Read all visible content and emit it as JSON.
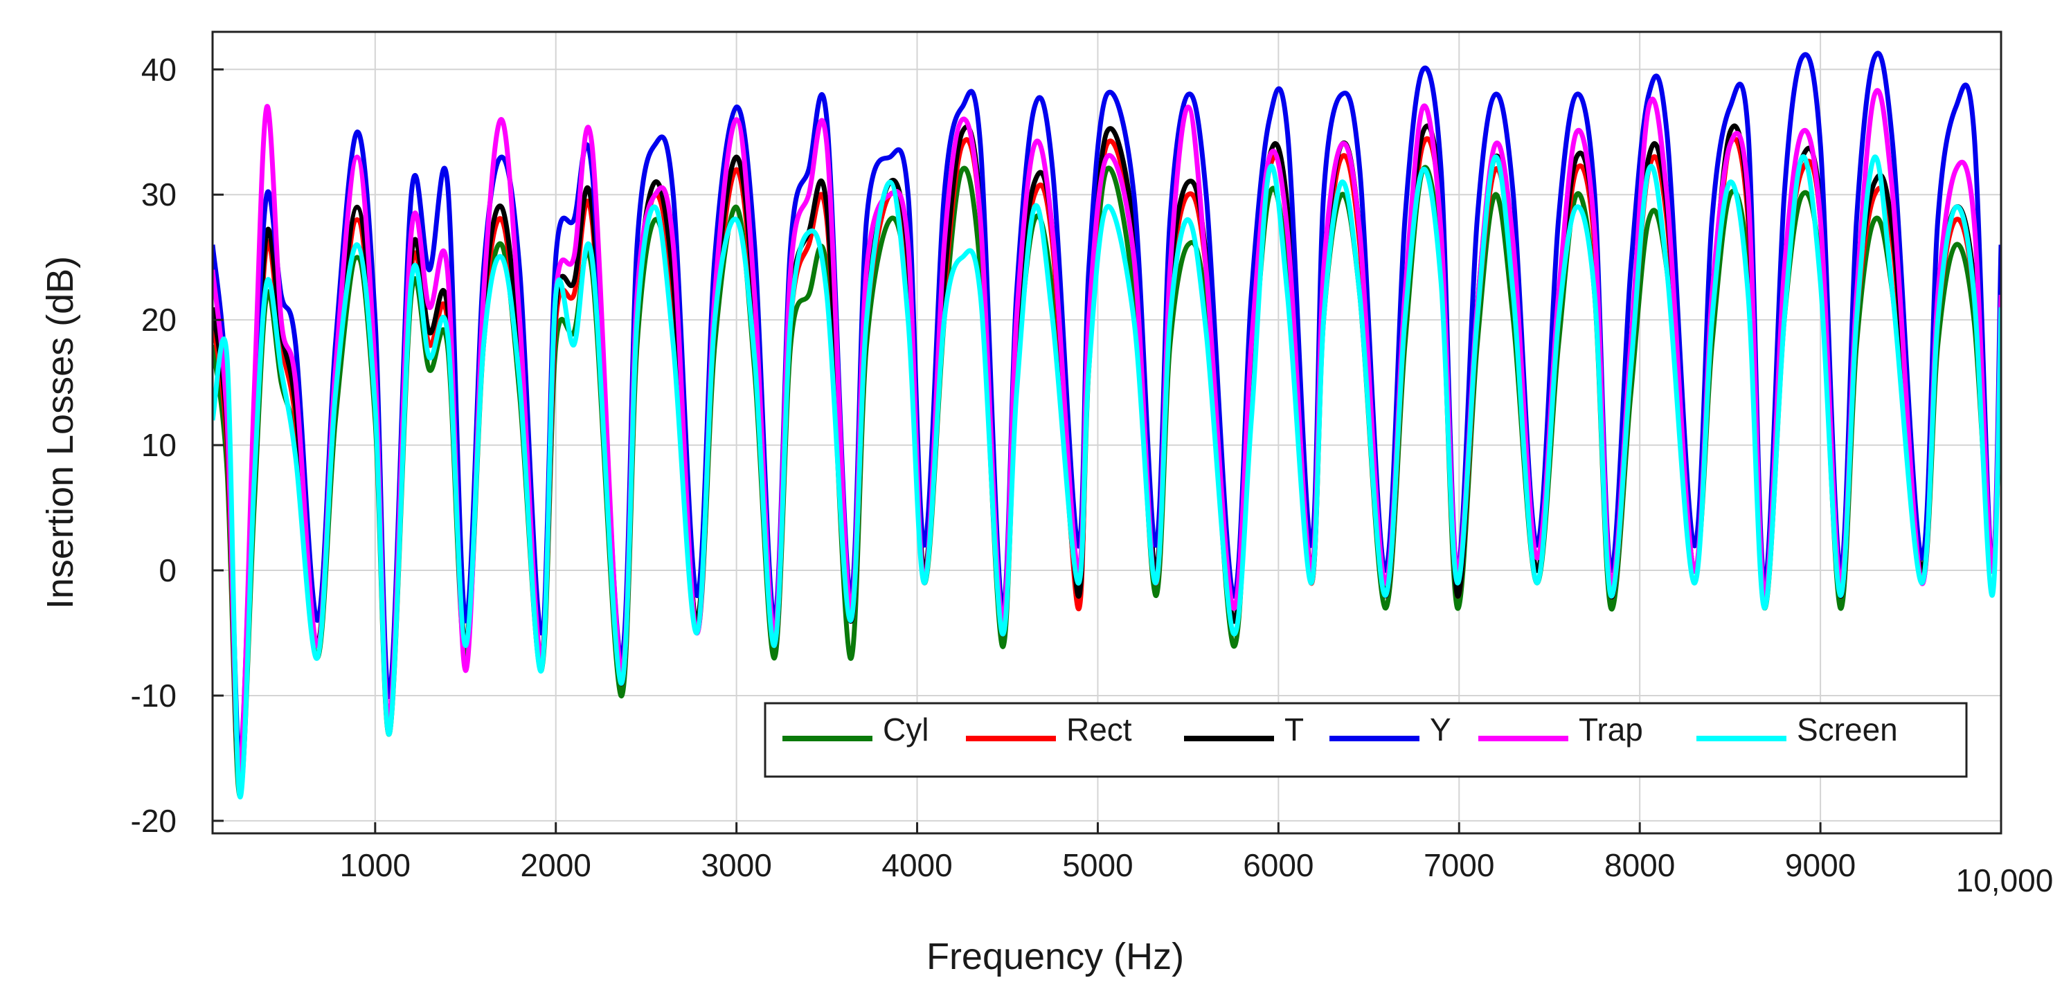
{
  "chart_data": {
    "type": "line",
    "title": "",
    "xlabel": "Frequency (Hz)",
    "ylabel": "Insertion Losses (dB)",
    "xlim": [
      100,
      10000
    ],
    "ylim": [
      -21,
      43
    ],
    "grid": true,
    "legend_position": "bottom-right",
    "x_ticks": [
      {
        "value": 1000,
        "label": "1000"
      },
      {
        "value": 2000,
        "label": "2000"
      },
      {
        "value": 3000,
        "label": "3000"
      },
      {
        "value": 4000,
        "label": "4000"
      },
      {
        "value": 5000,
        "label": "5000"
      },
      {
        "value": 6000,
        "label": "6000"
      },
      {
        "value": 7000,
        "label": "7000"
      },
      {
        "value": 8000,
        "label": "8000"
      },
      {
        "value": 9000,
        "label": "9000"
      },
      {
        "value": 10000,
        "label": "10,000"
      }
    ],
    "y_ticks": [
      {
        "value": -20,
        "label": "-20"
      },
      {
        "value": -10,
        "label": "-10"
      },
      {
        "value": 0,
        "label": "0"
      },
      {
        "value": 10,
        "label": "10"
      },
      {
        "value": 20,
        "label": "20"
      },
      {
        "value": 30,
        "label": "30"
      },
      {
        "value": 40,
        "label": "40"
      }
    ],
    "series": [
      {
        "name": "Cyl",
        "color": "#0a7a0a",
        "x": [
          100,
          180,
          250,
          330,
          400,
          480,
          560,
          680,
          780,
          900,
          1000,
          1080,
          1200,
          1300,
          1400,
          1500,
          1600,
          1700,
          1800,
          1920,
          2000,
          2100,
          2200,
          2360,
          2450,
          2550,
          2650,
          2780,
          2880,
          3000,
          3100,
          3210,
          3300,
          3400,
          3500,
          3630,
          3720,
          3850,
          3950,
          4040,
          4150,
          4250,
          4350,
          4470,
          4550,
          4650,
          4750,
          4890,
          4950,
          5050,
          5200,
          5320,
          5400,
          5500,
          5600,
          5750,
          5850,
          5950,
          6050,
          6180,
          6250,
          6350,
          6450,
          6590,
          6700,
          6800,
          6900,
          6990,
          7100,
          7200,
          7300,
          7430,
          7550,
          7650,
          7750,
          7840,
          7950,
          8050,
          8150,
          8300,
          8400,
          8500,
          8600,
          8690,
          8800,
          8900,
          9000,
          9110,
          9200,
          9300,
          9400,
          9560,
          9650,
          9750,
          9850,
          9950,
          10000
        ],
        "y": [
          18,
          8,
          -18,
          5,
          22,
          15,
          10,
          -7,
          12,
          25,
          12,
          -13,
          22,
          16,
          18,
          -7,
          18,
          26,
          14,
          -8,
          18,
          19,
          24,
          -10,
          18,
          28,
          20,
          -5,
          18,
          29,
          16,
          -7,
          18,
          22,
          24,
          -7,
          18,
          28,
          22,
          -1,
          20,
          32,
          24,
          -6,
          15,
          28,
          22,
          -2,
          16,
          32,
          22,
          -2,
          18,
          26,
          21,
          -6,
          14,
          30,
          24,
          -1,
          20,
          30,
          22,
          -3,
          18,
          32,
          24,
          -3,
          18,
          30,
          20,
          -1,
          18,
          30,
          22,
          -3,
          14,
          28,
          24,
          0,
          18,
          30,
          24,
          -3,
          20,
          30,
          24,
          -3,
          18,
          28,
          22,
          -1,
          18,
          26,
          20,
          0,
          18
        ]
      },
      {
        "name": "Rect",
        "color": "#ff0000",
        "x": [
          100,
          180,
          250,
          330,
          400,
          480,
          560,
          680,
          780,
          900,
          1000,
          1080,
          1200,
          1300,
          1400,
          1500,
          1600,
          1700,
          1800,
          1920,
          2000,
          2100,
          2200,
          2360,
          2450,
          2550,
          2650,
          2780,
          2880,
          3000,
          3100,
          3210,
          3300,
          3400,
          3500,
          3630,
          3720,
          3850,
          3950,
          4040,
          4150,
          4250,
          4350,
          4470,
          4550,
          4650,
          4750,
          4890,
          4950,
          5050,
          5200,
          5320,
          5400,
          5500,
          5600,
          5750,
          5850,
          5950,
          6050,
          6180,
          6250,
          6350,
          6450,
          6590,
          6700,
          6800,
          6900,
          6990,
          7100,
          7200,
          7300,
          7430,
          7550,
          7650,
          7750,
          7840,
          7950,
          8050,
          8150,
          8300,
          8400,
          8500,
          8600,
          8690,
          8800,
          8900,
          9000,
          9110,
          9200,
          9300,
          9400,
          9560,
          9650,
          9750,
          9850,
          9950,
          10000
        ],
        "y": [
          20,
          10,
          -17,
          8,
          26,
          18,
          12,
          -6,
          14,
          28,
          14,
          -12,
          24,
          18,
          20,
          -6,
          20,
          28,
          16,
          -7,
          20,
          22,
          28,
          -9,
          20,
          30,
          22,
          -4,
          20,
          32,
          20,
          -6,
          20,
          26,
          28,
          -4,
          20,
          30,
          24,
          0,
          22,
          34,
          28,
          -5,
          18,
          30,
          26,
          -3,
          18,
          34,
          26,
          -1,
          22,
          30,
          24,
          -4,
          16,
          32,
          28,
          -1,
          22,
          33,
          26,
          -2,
          20,
          34,
          28,
          -2,
          20,
          32,
          24,
          0,
          20,
          32,
          26,
          -2,
          16,
          32,
          28,
          0,
          20,
          34,
          28,
          -2,
          22,
          32,
          28,
          -2,
          20,
          30,
          26,
          0,
          20,
          28,
          22,
          0,
          20
        ]
      },
      {
        "name": "T",
        "color": "#000000",
        "x": [
          100,
          180,
          250,
          330,
          400,
          480,
          560,
          680,
          780,
          900,
          1000,
          1080,
          1200,
          1300,
          1400,
          1500,
          1600,
          1700,
          1800,
          1920,
          2000,
          2100,
          2200,
          2360,
          2450,
          2550,
          2650,
          2780,
          2880,
          3000,
          3100,
          3210,
          3300,
          3400,
          3500,
          3630,
          3720,
          3850,
          3950,
          4040,
          4150,
          4250,
          4350,
          4470,
          4550,
          4650,
          4750,
          4890,
          4950,
          5050,
          5200,
          5320,
          5400,
          5500,
          5600,
          5750,
          5850,
          5950,
          6050,
          6180,
          6250,
          6350,
          6450,
          6590,
          6700,
          6800,
          6900,
          6990,
          7100,
          7200,
          7300,
          7430,
          7550,
          7650,
          7750,
          7840,
          7950,
          8050,
          8150,
          8300,
          8400,
          8500,
          8600,
          8690,
          8800,
          8900,
          9000,
          9110,
          9200,
          9300,
          9400,
          9560,
          9650,
          9750,
          9850,
          9950,
          10000
        ],
        "y": [
          21,
          11,
          -17,
          9,
          27,
          19,
          13,
          -6,
          15,
          29,
          15,
          -12,
          25,
          19,
          21,
          -6,
          21,
          29,
          17,
          -7,
          21,
          23,
          29,
          -9,
          21,
          31,
          23,
          -4,
          21,
          33,
          21,
          -6,
          21,
          27,
          29,
          -4,
          21,
          31,
          25,
          0,
          23,
          35,
          29,
          -5,
          19,
          31,
          27,
          -2,
          19,
          35,
          27,
          0,
          23,
          31,
          25,
          -4,
          17,
          33,
          29,
          0,
          23,
          34,
          27,
          -2,
          21,
          35,
          29,
          -2,
          21,
          33,
          25,
          0,
          21,
          33,
          27,
          -2,
          17,
          33,
          29,
          0,
          21,
          35,
          29,
          -2,
          23,
          33,
          29,
          -2,
          21,
          31,
          27,
          0,
          21,
          29,
          23,
          0,
          21
        ]
      },
      {
        "name": "Y",
        "color": "#0000ee",
        "x": [
          100,
          180,
          250,
          330,
          400,
          480,
          560,
          680,
          780,
          900,
          1000,
          1080,
          1200,
          1300,
          1400,
          1500,
          1600,
          1700,
          1800,
          1920,
          2000,
          2100,
          2200,
          2360,
          2450,
          2550,
          2650,
          2780,
          2880,
          3000,
          3100,
          3210,
          3300,
          3400,
          3500,
          3630,
          3720,
          3850,
          3950,
          4040,
          4150,
          4250,
          4350,
          4470,
          4550,
          4650,
          4750,
          4890,
          4950,
          5050,
          5200,
          5320,
          5400,
          5500,
          5600,
          5750,
          5850,
          5950,
          6050,
          6180,
          6250,
          6350,
          6450,
          6590,
          6700,
          6800,
          6900,
          6990,
          7100,
          7200,
          7300,
          7430,
          7550,
          7650,
          7750,
          7840,
          7950,
          8050,
          8150,
          8300,
          8400,
          8500,
          8600,
          8690,
          8800,
          8900,
          9000,
          9110,
          9200,
          9300,
          9400,
          9560,
          9650,
          9750,
          9850,
          9950,
          10000
        ],
        "y": [
          26,
          14,
          -15,
          12,
          30,
          22,
          18,
          -4,
          18,
          35,
          20,
          -10,
          30,
          24,
          31,
          -4,
          24,
          33,
          24,
          -5,
          25,
          28,
          32,
          -7,
          26,
          34,
          30,
          -2,
          25,
          37,
          26,
          -4,
          26,
          32,
          36,
          -2,
          28,
          33,
          30,
          2,
          30,
          37,
          34,
          -3,
          22,
          37,
          32,
          2,
          24,
          38,
          30,
          2,
          28,
          38,
          30,
          -2,
          22,
          36,
          35,
          2,
          30,
          38,
          32,
          0,
          28,
          40,
          32,
          0,
          28,
          38,
          30,
          2,
          28,
          38,
          30,
          0,
          24,
          38,
          35,
          2,
          28,
          37,
          35,
          -1,
          30,
          41,
          34,
          0,
          28,
          41,
          34,
          1,
          28,
          37,
          35,
          0,
          26
        ]
      },
      {
        "name": "Trap",
        "color": "#ff00ff",
        "x": [
          100,
          180,
          250,
          330,
          400,
          480,
          560,
          680,
          780,
          900,
          1000,
          1080,
          1200,
          1300,
          1400,
          1500,
          1600,
          1700,
          1800,
          1920,
          2000,
          2100,
          2200,
          2360,
          2450,
          2550,
          2650,
          2780,
          2880,
          3000,
          3100,
          3210,
          3300,
          3400,
          3500,
          3630,
          3720,
          3850,
          3950,
          4040,
          4150,
          4250,
          4350,
          4470,
          4550,
          4650,
          4750,
          4890,
          4950,
          5050,
          5200,
          5320,
          5400,
          5500,
          5600,
          5750,
          5850,
          5950,
          6050,
          6180,
          6250,
          6350,
          6450,
          6590,
          6700,
          6800,
          6900,
          6990,
          7100,
          7200,
          7300,
          7430,
          7550,
          7650,
          7750,
          7840,
          7950,
          8050,
          8150,
          8300,
          8400,
          8500,
          8600,
          8690,
          8800,
          8900,
          9000,
          9110,
          9200,
          9300,
          9400,
          9560,
          9650,
          9750,
          9850,
          9950,
          10000
        ],
        "y": [
          24,
          12,
          -16,
          14,
          37,
          20,
          15,
          -6,
          16,
          33,
          16,
          -12,
          27,
          21,
          24,
          -8,
          22,
          36,
          20,
          -7,
          22,
          25,
          34,
          -8,
          22,
          30,
          26,
          -5,
          22,
          36,
          22,
          -5,
          24,
          30,
          34,
          -3,
          24,
          30,
          26,
          -1,
          26,
          36,
          28,
          -4,
          20,
          34,
          27,
          0,
          20,
          33,
          25,
          -1,
          24,
          37,
          24,
          -3,
          18,
          33,
          27,
          0,
          24,
          34,
          27,
          -1,
          22,
          37,
          27,
          0,
          21,
          34,
          26,
          1,
          22,
          35,
          27,
          -1,
          18,
          37,
          30,
          0,
          22,
          34,
          30,
          -2,
          24,
          35,
          28,
          -1,
          22,
          38,
          30,
          -1,
          22,
          32,
          28,
          0,
          22
        ]
      },
      {
        "name": "Screen",
        "color": "#00ffff",
        "x": [
          100,
          180,
          250,
          330,
          400,
          480,
          560,
          680,
          780,
          900,
          1000,
          1080,
          1200,
          1300,
          1400,
          1500,
          1600,
          1700,
          1800,
          1920,
          2000,
          2100,
          2200,
          2360,
          2450,
          2550,
          2650,
          2780,
          2880,
          3000,
          3100,
          3210,
          3300,
          3400,
          3500,
          3630,
          3720,
          3850,
          3950,
          4040,
          4150,
          4250,
          4350,
          4470,
          4550,
          4650,
          4750,
          4890,
          4950,
          5050,
          5200,
          5320,
          5400,
          5500,
          5600,
          5750,
          5850,
          5950,
          6050,
          6180,
          6250,
          6350,
          6450,
          6590,
          6700,
          6800,
          6900,
          6990,
          7100,
          7200,
          7300,
          7430,
          7550,
          7650,
          7750,
          7840,
          7950,
          8050,
          8150,
          8300,
          8400,
          8500,
          8600,
          8690,
          8800,
          8900,
          9000,
          9110,
          9200,
          9300,
          9400,
          9560,
          9650,
          9750,
          9850,
          9950,
          10000
        ],
        "y": [
          12,
          17,
          -18,
          7,
          23,
          16,
          9,
          -7,
          14,
          26,
          13,
          -13,
          23,
          17,
          19,
          -6,
          18,
          25,
          15,
          -8,
          22,
          18,
          25,
          -9,
          20,
          29,
          18,
          -5,
          20,
          28,
          17,
          -6,
          20,
          27,
          22,
          -4,
          20,
          31,
          20,
          -1,
          20,
          25,
          22,
          -5,
          14,
          29,
          20,
          -1,
          16,
          29,
          20,
          -1,
          20,
          28,
          19,
          -5,
          12,
          32,
          22,
          -1,
          20,
          31,
          22,
          -2,
          20,
          32,
          23,
          -1,
          20,
          33,
          22,
          -1,
          20,
          29,
          22,
          -2,
          16,
          32,
          24,
          -1,
          20,
          31,
          22,
          -3,
          20,
          33,
          23,
          -2,
          20,
          33,
          22,
          -1,
          20,
          29,
          22,
          -2,
          21
        ]
      }
    ]
  }
}
